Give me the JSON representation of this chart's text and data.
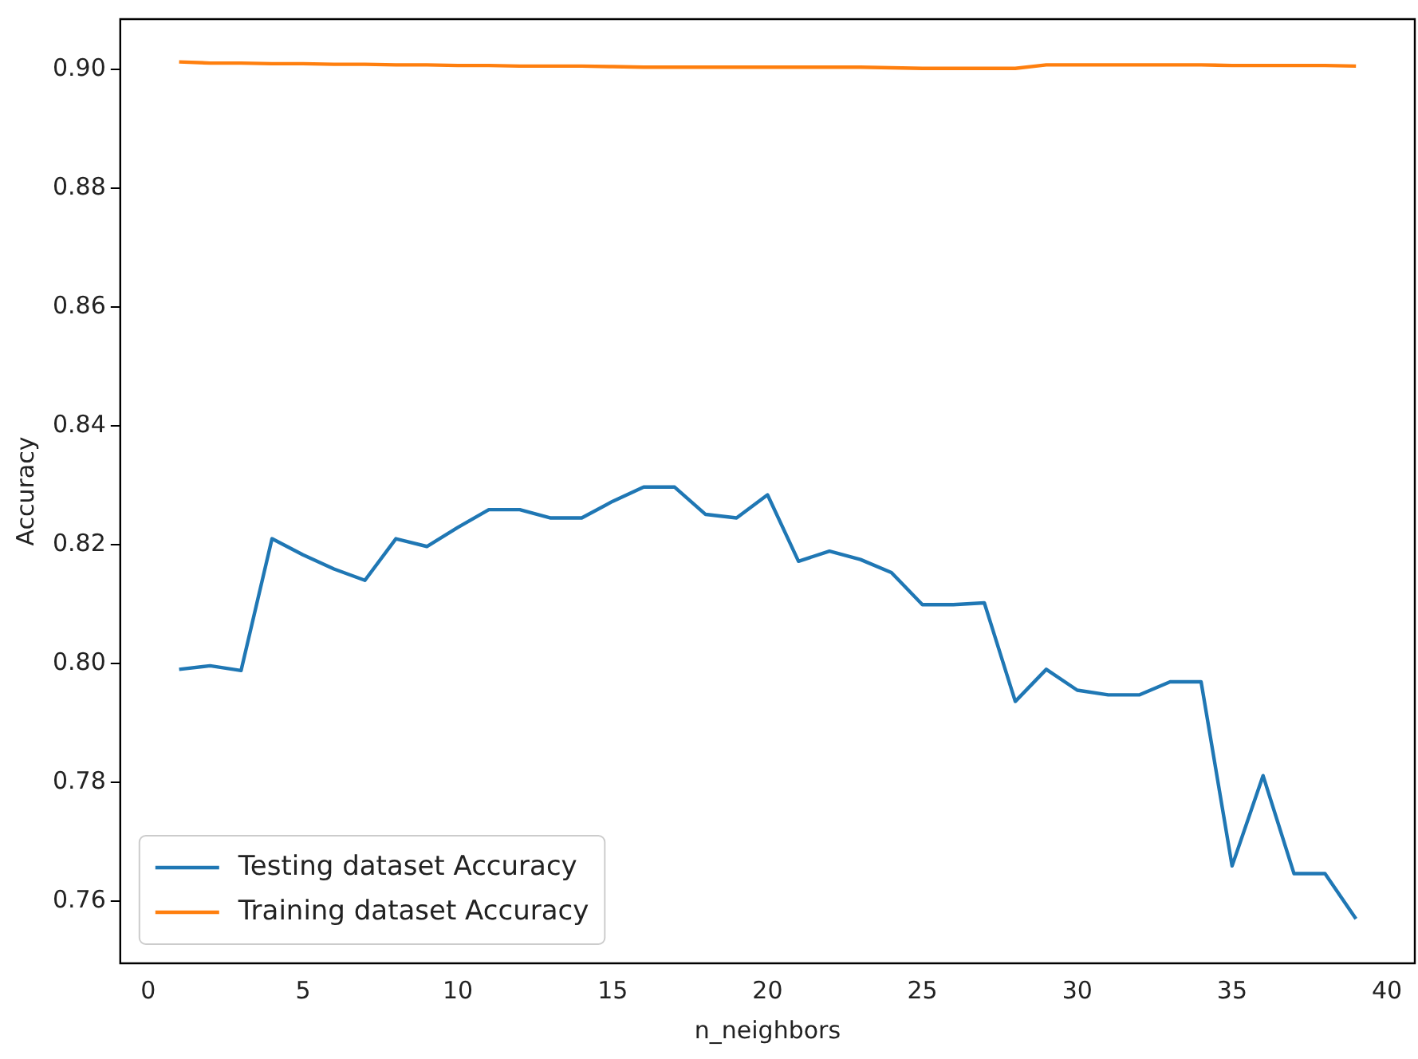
{
  "chart_data": {
    "type": "line",
    "xlabel": "n_neighbors",
    "ylabel": "Accuracy",
    "x": [
      1,
      2,
      3,
      4,
      5,
      6,
      7,
      8,
      9,
      10,
      11,
      12,
      13,
      14,
      15,
      16,
      17,
      18,
      19,
      20,
      21,
      22,
      23,
      24,
      25,
      26,
      27,
      28,
      29,
      30,
      31,
      32,
      33,
      34,
      35,
      36,
      37,
      38,
      39
    ],
    "series": [
      {
        "name": "Testing dataset Accuracy",
        "color": "#1f77b4",
        "values": [
          0.799,
          0.7996,
          0.7988,
          0.821,
          0.8183,
          0.8159,
          0.814,
          0.821,
          0.8197,
          0.8229,
          0.8259,
          0.8259,
          0.8245,
          0.8245,
          0.8273,
          0.8297,
          0.8297,
          0.8251,
          0.8245,
          0.8284,
          0.8172,
          0.8189,
          0.8175,
          0.8153,
          0.8099,
          0.8099,
          0.8102,
          0.7936,
          0.799,
          0.7955,
          0.7947,
          0.7947,
          0.7969,
          0.7969,
          0.7659,
          0.7811,
          0.7646,
          0.7646,
          0.757
        ]
      },
      {
        "name": "Training dataset Accuracy",
        "color": "#ff7f0e",
        "values": [
          0.9013,
          0.9011,
          0.9011,
          0.901,
          0.901,
          0.9009,
          0.9009,
          0.9008,
          0.9008,
          0.9007,
          0.9007,
          0.9006,
          0.9006,
          0.9006,
          0.9005,
          0.9004,
          0.9004,
          0.9004,
          0.9004,
          0.9004,
          0.9004,
          0.9004,
          0.9004,
          0.9003,
          0.9002,
          0.9002,
          0.9002,
          0.9002,
          0.9008,
          0.9008,
          0.9008,
          0.9008,
          0.9008,
          0.9008,
          0.9007,
          0.9007,
          0.9007,
          0.9007,
          0.9006
        ]
      }
    ],
    "xlim": [
      -0.9,
      40.9
    ],
    "xticks": [
      0,
      5,
      10,
      15,
      20,
      25,
      30,
      35,
      40
    ],
    "ylim": [
      0.7495,
      0.9085
    ],
    "yticks": [
      0.76,
      0.78,
      {
        "value": 0.8,
        "label": "0.80"
      },
      0.82,
      0.84,
      0.86,
      0.88,
      {
        "value": 0.9,
        "label": "0.90"
      }
    ],
    "grid": false,
    "legend": "bottom left",
    "marker": "none",
    "line_style": "solid"
  }
}
